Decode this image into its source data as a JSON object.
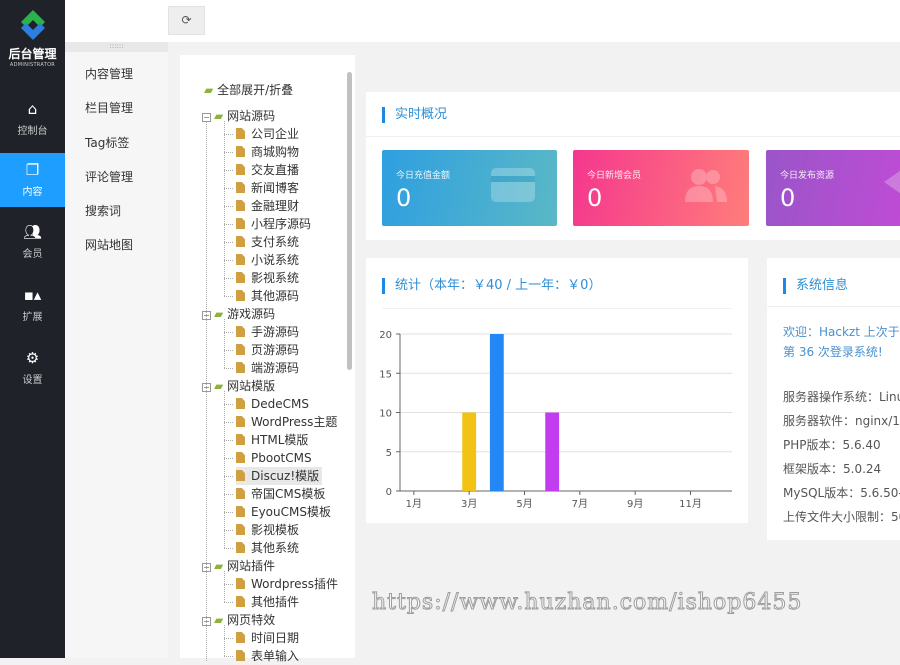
{
  "brand": {
    "title": "后台管理",
    "subtitle": "ADMINISTRATOR"
  },
  "nav": [
    {
      "label": "控制台",
      "icon": "home-icon"
    },
    {
      "label": "内容",
      "icon": "content-icon",
      "active": true
    },
    {
      "label": "会员",
      "icon": "users-icon"
    },
    {
      "label": "扩展",
      "icon": "extend-icon"
    },
    {
      "label": "设置",
      "icon": "gear-icon"
    }
  ],
  "subnav": [
    "内容管理",
    "栏目管理",
    "Tag标签",
    "评论管理",
    "搜索词",
    "网站地图"
  ],
  "toolbar": {
    "refresh_icon": "refresh-icon"
  },
  "tree": {
    "toggle_all": "全部展开/折叠",
    "groups": [
      {
        "label": "网站源码",
        "children": [
          "公司企业",
          "商城购物",
          "交友直播",
          "新闻博客",
          "金融理财",
          "小程序源码",
          "支付系统",
          "小说系统",
          "影视系统",
          "其他源码"
        ]
      },
      {
        "label": "游戏源码",
        "children": [
          "手游源码",
          "页游源码",
          "端游源码"
        ]
      },
      {
        "label": "网站模版",
        "children": [
          "DedeCMS",
          "WordPress主题",
          "HTML模版",
          "PbootCMS",
          "Discuz!模版",
          "帝国CMS模板",
          "EyouCMS模板",
          "影视模板",
          "其他系统"
        ]
      },
      {
        "label": "网站插件",
        "children": [
          "Wordpress插件",
          "其他插件"
        ]
      },
      {
        "label": "网页特效",
        "children": [
          "时间日期",
          "表单输入"
        ]
      }
    ],
    "selected": "Discuz!模版"
  },
  "overview": {
    "title": "实时概况",
    "cards": [
      {
        "label": "今日充值金额",
        "value": "0",
        "gradient": [
          "#2e9fe0",
          "#5ab8c6"
        ]
      },
      {
        "label": "今日新增会员",
        "value": "0",
        "gradient": [
          "#f5378e",
          "#ff7d7a"
        ]
      },
      {
        "label": "今日发布资源",
        "value": "0",
        "gradient": [
          "#9a55c9",
          "#c24bd6"
        ]
      }
    ]
  },
  "stats": {
    "title": "统计（本年：￥40 / 上一年：￥0）"
  },
  "chart_data": {
    "type": "bar",
    "categories": [
      "1月",
      "2月",
      "3月",
      "4月",
      "5月",
      "6月",
      "7月",
      "8月",
      "9月",
      "10月",
      "11月",
      "12月"
    ],
    "tick_labels": [
      "1月",
      "3月",
      "5月",
      "7月",
      "9月",
      "11月"
    ],
    "values": [
      0,
      0,
      10,
      20,
      0,
      10,
      0,
      0,
      0,
      0,
      0,
      0
    ],
    "colors": {
      "3月": "#f2c314",
      "4月": "#2388f5",
      "6月": "#c23cf0"
    },
    "ylim": [
      0,
      20
    ],
    "yticks": [
      0,
      5,
      10,
      15,
      20
    ],
    "grid": true
  },
  "sysinfo": {
    "title": "系统信息",
    "welcome": [
      "欢迎：Hackzt 上次于 2",
      "第 36 次登录系统!"
    ],
    "lines": [
      "服务器操作系统：Linu",
      "服务器软件：nginx/1.2",
      "PHP版本：5.6.40",
      "框架版本：5.0.24",
      "MySQL版本：5.6.50-lo",
      "上传文件大小限制：50"
    ]
  },
  "watermark": "https://www.huzhan.com/ishop6455"
}
